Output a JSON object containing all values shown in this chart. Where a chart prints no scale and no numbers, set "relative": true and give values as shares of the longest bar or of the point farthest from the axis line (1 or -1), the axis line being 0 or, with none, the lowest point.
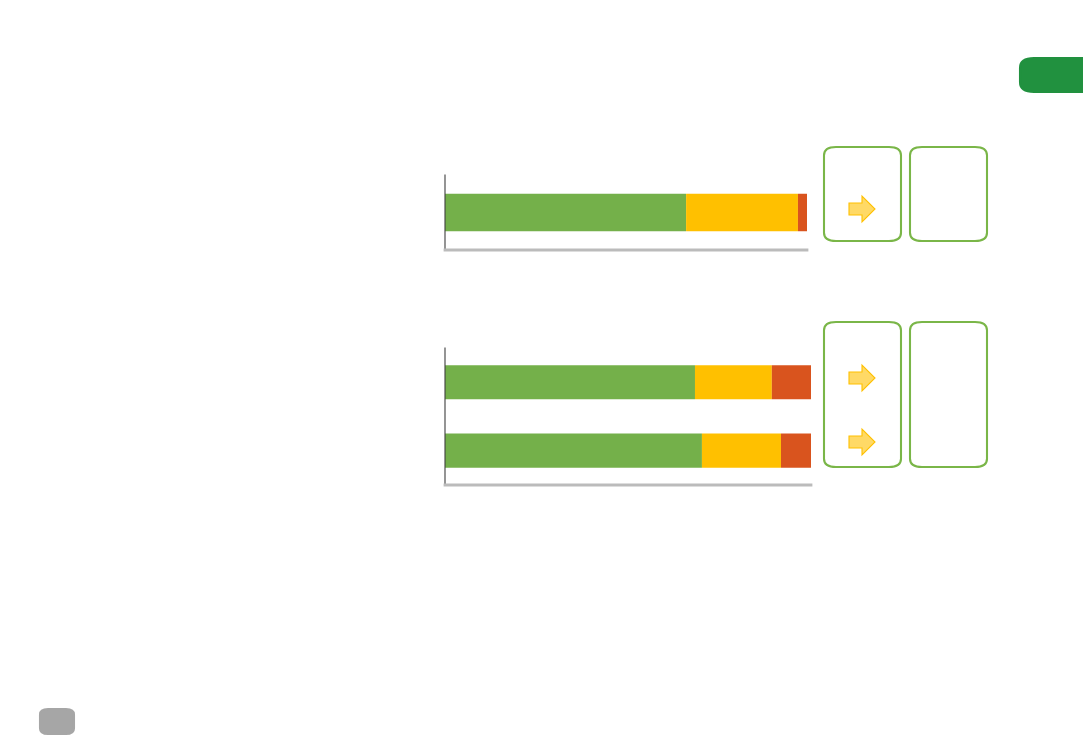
{
  "chart_data": [
    {
      "type": "bar",
      "orientation": "horizontal",
      "stacked": true,
      "relative": true,
      "categories": [
        null
      ],
      "series": [
        {
          "color": "#74b04a",
          "values": [
            0.666
          ]
        },
        {
          "color": "#ffc000",
          "values": [
            0.309
          ]
        },
        {
          "color": "#d9541e",
          "values": [
            0.025
          ]
        }
      ]
    },
    {
      "type": "bar",
      "orientation": "horizontal",
      "stacked": true,
      "relative": true,
      "categories": [
        null,
        null
      ],
      "series": [
        {
          "color": "#74b04a",
          "values": [
            0.683,
            0.702
          ]
        },
        {
          "color": "#ffc000",
          "values": [
            0.21,
            0.216
          ]
        },
        {
          "color": "#d9541e",
          "values": [
            0.107,
            0.082
          ]
        }
      ]
    }
  ]
}
